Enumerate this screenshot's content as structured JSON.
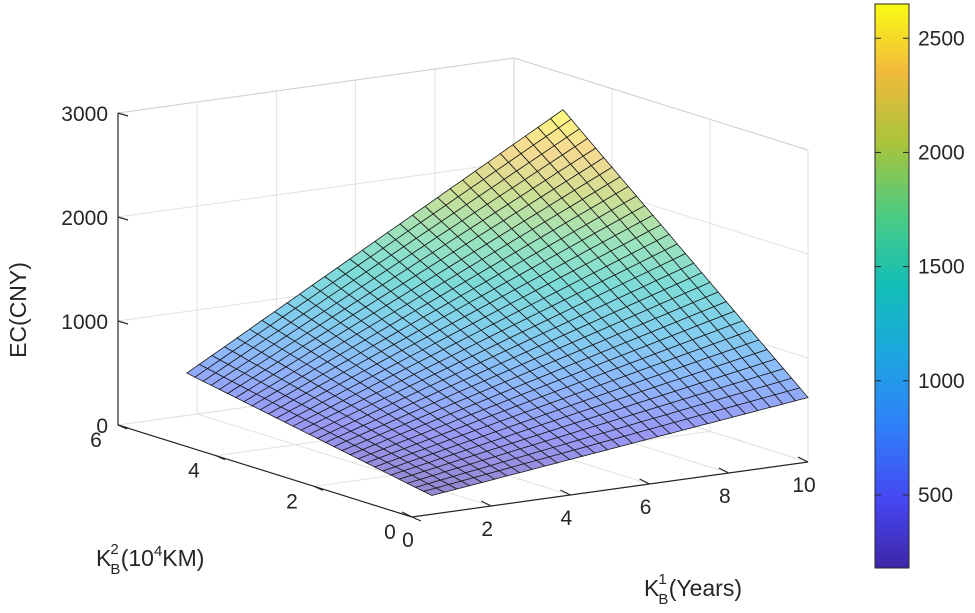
{
  "chart_data": {
    "type": "surface",
    "title": "",
    "zlabel": "EC(CNY)",
    "xlabel": {
      "base": "K",
      "sub": "B",
      "sup": "1",
      "rest": "(Years)"
    },
    "ylabel": {
      "base": "K",
      "sub": "B",
      "sup": "2",
      "rest": "(10",
      "sup2": "4",
      "rest2": "KM)"
    },
    "x_ticks": [
      "0",
      "2",
      "4",
      "6",
      "8",
      "10"
    ],
    "y_ticks": [
      "0",
      "2",
      "4",
      "6"
    ],
    "z_ticks": [
      "0",
      "1000",
      "2000",
      "3000"
    ],
    "colorbar_ticks": [
      "500",
      "1000",
      "1500",
      "2000",
      "2500"
    ],
    "xlim": [
      0,
      10
    ],
    "ylim": [
      0,
      6
    ],
    "zlim": [
      0,
      3000
    ],
    "clim": [
      180,
      2650
    ],
    "grid": true,
    "colormap": "parula",
    "surface": {
      "x_range": [
        0.5,
        10
      ],
      "y_range": [
        0,
        5
      ],
      "n": 30,
      "corner_values": {
        "x0_y0": 180,
        "xmax_y0": 620,
        "x0_ymax": 620,
        "xmax_ymax": 2650
      },
      "note_model": "bilinear"
    }
  }
}
